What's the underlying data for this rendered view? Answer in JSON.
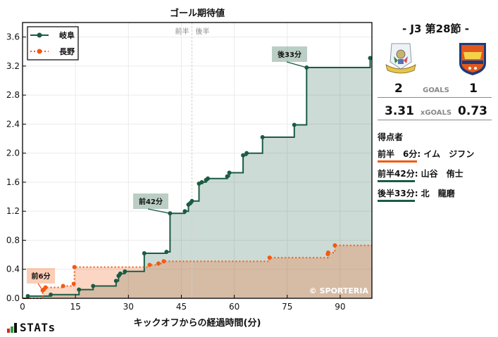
{
  "chart": {
    "title": "ゴール期待値",
    "xlabel": "キックオフからの経過時間(分)",
    "half_labels": {
      "first": "前半",
      "second": "後半"
    },
    "copyright": "© SPORTERIA",
    "legend": [
      {
        "name": "岐阜",
        "color": "#1a5c43"
      },
      {
        "name": "長野",
        "color": "#f25a12"
      }
    ],
    "annotations": [
      {
        "text": "前6分",
        "team": "長野"
      },
      {
        "text": "前42分",
        "team": "岐阜"
      },
      {
        "text": "後33分",
        "team": "岐阜"
      }
    ]
  },
  "chart_data": {
    "type": "line",
    "step": true,
    "title": "ゴール期待値",
    "xlabel": "キックオフからの経過時間(分)",
    "ylabel": "",
    "xlim": [
      0,
      99
    ],
    "ylim": [
      0,
      3.8
    ],
    "xticks": [
      0,
      15,
      30,
      45,
      60,
      75,
      90
    ],
    "yticks": [
      0.0,
      0.4,
      0.8,
      1.2,
      1.6,
      2.0,
      2.4,
      2.8,
      3.2,
      3.6
    ],
    "halftime_line_x": 48,
    "grid": true,
    "legend_position": "upper left",
    "series": [
      {
        "name": "岐阜",
        "color": "#1a5c43",
        "style": "solid",
        "x": [
          1.5,
          8,
          16,
          20,
          26.5,
          27.2,
          27.7,
          29,
          34.5,
          40.8,
          41.8,
          46,
          47,
          47.5,
          48,
          50,
          50.8,
          52,
          52.5,
          58,
          58.6,
          62.5,
          63.5,
          68,
          77,
          80.5,
          98.5
        ],
        "y": [
          0.03,
          0.05,
          0.12,
          0.17,
          0.24,
          0.31,
          0.34,
          0.37,
          0.62,
          0.64,
          1.17,
          1.2,
          1.29,
          1.31,
          1.34,
          1.58,
          1.6,
          1.63,
          1.65,
          1.68,
          1.73,
          1.97,
          2.0,
          2.22,
          2.39,
          3.18,
          3.31
        ]
      },
      {
        "name": "長野",
        "color": "#f25a12",
        "style": "dotted",
        "x": [
          5.7,
          6,
          6.5,
          11.5,
          14.5,
          14.7,
          36,
          38.5,
          40,
          70,
          86.5,
          86.6,
          88.5
        ],
        "y": [
          0.11,
          0.12,
          0.15,
          0.17,
          0.2,
          0.43,
          0.46,
          0.48,
          0.51,
          0.56,
          0.61,
          0.63,
          0.73
        ]
      }
    ],
    "goals": [
      {
        "label": "前6分",
        "team": "長野",
        "x": 5.7,
        "y": 0.11
      },
      {
        "label": "前42分",
        "team": "岐阜",
        "x": 41.8,
        "y": 1.17
      },
      {
        "label": "後33分",
        "team": "岐阜",
        "x": 80.5,
        "y": 3.18
      }
    ]
  },
  "panel": {
    "round": "- J3 第28節 -",
    "home": {
      "name": "FC岐阜",
      "goals": "2",
      "xg": "3.31"
    },
    "away": {
      "name": "AC長野パルセイロ",
      "goals": "1",
      "xg": "0.73"
    },
    "goals_label": "GOALS",
    "xg_label": "xGOALS",
    "scorers_header": "得点者",
    "scorers": [
      {
        "time": "前半　6分",
        "name": ": イム　ジフン",
        "color": "#f25a12"
      },
      {
        "time": "前半42分",
        "name": ": 山谷　侑士",
        "color": "#1a5c43"
      },
      {
        "time": "後半33分",
        "name": ": 北　龍磨",
        "color": "#1a5c43"
      }
    ]
  },
  "footer": {
    "brand": "STATs"
  }
}
